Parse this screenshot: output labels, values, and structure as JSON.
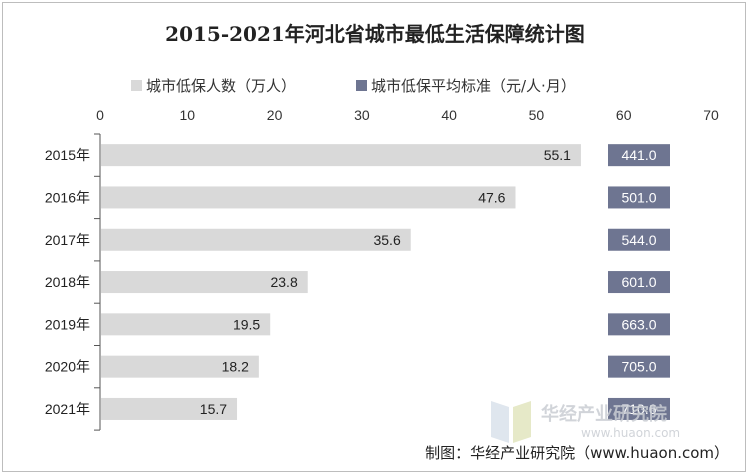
{
  "chart_data": {
    "type": "bar",
    "orientation": "horizontal",
    "title": "2015-2021年河北省城市最低生活保障统计图",
    "categories": [
      "2015年",
      "2016年",
      "2017年",
      "2018年",
      "2019年",
      "2020年",
      "2021年"
    ],
    "series": [
      {
        "name": "城市低保人数（万人）",
        "values": [
          55.1,
          47.6,
          35.6,
          23.8,
          19.5,
          18.2,
          15.7
        ],
        "labels": [
          "55.1",
          "47.6",
          "35.6",
          "23.8",
          "19.5",
          "18.2",
          "15.7"
        ],
        "color": "#d9d9d9"
      },
      {
        "name": "城市低保平均标准（元/人·月）",
        "values": [
          441.0,
          501.0,
          544.0,
          601.0,
          663.0,
          705.0,
          710.6
        ],
        "labels": [
          "441.0",
          "501.0",
          "544.0",
          "601.0",
          "663.0",
          "705.0",
          "710.6"
        ],
        "color": "#6e7591"
      }
    ],
    "xlim": [
      0,
      70
    ],
    "xticks": [
      "0",
      "10",
      "20",
      "30",
      "40",
      "50",
      "60",
      "70"
    ],
    "legend_position": "top",
    "source": "制图：华经产业研究院（www.huaon.com）"
  },
  "watermark": {
    "brand": "华经产业研究院",
    "url": "www.huaon.com"
  }
}
